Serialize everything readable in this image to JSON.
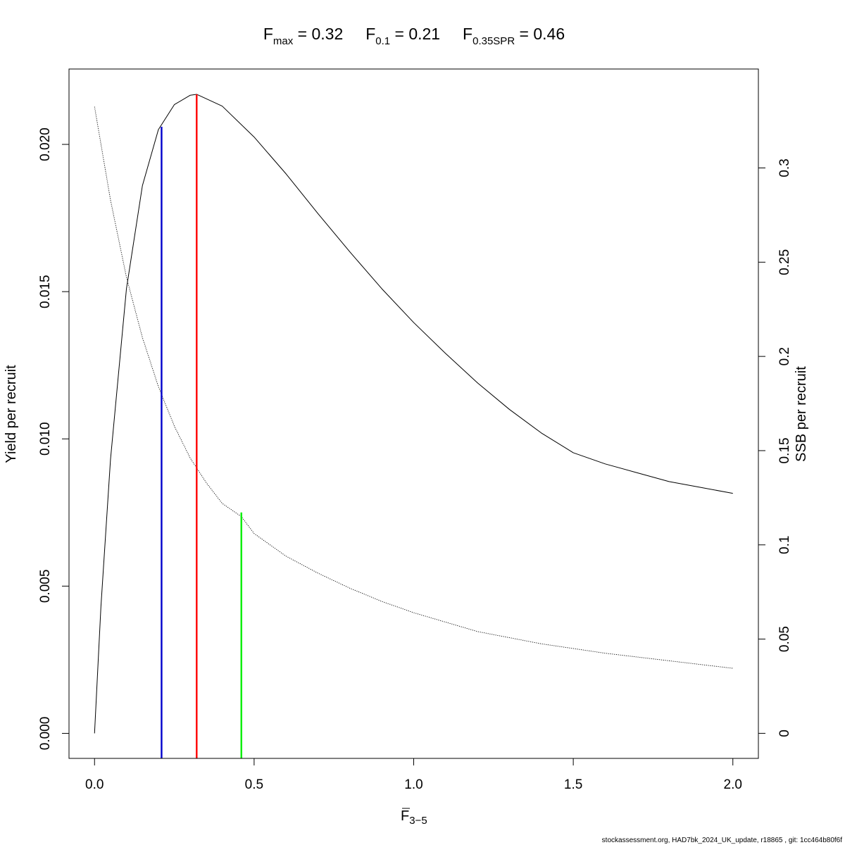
{
  "chart_data": {
    "type": "line",
    "title_parts": [
      {
        "main": "F",
        "sub": "max",
        "eq": " = ",
        "value": "0.32"
      },
      {
        "main": "F",
        "sub": "0.1",
        "eq": " = ",
        "value": "0.21"
      },
      {
        "main": "F",
        "sub": "0.35SPR",
        "eq": " = ",
        "value": "0.46"
      }
    ],
    "xlabel": {
      "main": "F",
      "sub": "3−5"
    },
    "ylabel_left": "Yield per recruit",
    "ylabel_right": "SSB per recruit",
    "xlim": [
      -0.08,
      2.08
    ],
    "ylim_left": [
      -0.00085,
      0.02256
    ],
    "ylim_right": [
      -0.0133,
      0.3525
    ],
    "x_ticks": [
      0,
      0.5,
      1,
      1.5,
      2
    ],
    "x_tick_labels": [
      "0.0",
      "0.5",
      "1.0",
      "1.5",
      "2.0"
    ],
    "y_left_ticks": [
      0,
      0.005,
      0.01,
      0.015,
      0.02
    ],
    "y_left_tick_labels": [
      "0.000",
      "0.005",
      "0.010",
      "0.015",
      "0.020"
    ],
    "y_right_ticks": [
      0,
      0.05,
      0.1,
      0.15,
      0.2,
      0.25,
      0.3
    ],
    "y_right_tick_labels": [
      "0",
      "0.05",
      "0.1",
      "0.15",
      "0.2",
      "0.25",
      "0.3"
    ],
    "series": [
      {
        "axis": "left",
        "style": "solid",
        "color": "#000000",
        "x": [
          0,
          0.02,
          0.05,
          0.1,
          0.15,
          0.2,
          0.25,
          0.3,
          0.32,
          0.4,
          0.5,
          0.6,
          0.7,
          0.8,
          0.9,
          1.0,
          1.1,
          1.2,
          1.3,
          1.4,
          1.5,
          1.6,
          1.7,
          1.8,
          1.9,
          2.0
        ],
        "y": [
          0,
          0.0043,
          0.0093,
          0.0151,
          0.0186,
          0.0205,
          0.02135,
          0.02167,
          0.0217,
          0.0213,
          0.02025,
          0.019,
          0.01765,
          0.01635,
          0.0151,
          0.01395,
          0.0129,
          0.0119,
          0.011,
          0.0102,
          0.00953,
          0.00915,
          0.00885,
          0.00855,
          0.00835,
          0.00815
        ]
      },
      {
        "axis": "right",
        "style": "dotted",
        "color": "#000000",
        "x": [
          0,
          0.05,
          0.1,
          0.15,
          0.2,
          0.25,
          0.3,
          0.35,
          0.4,
          0.46,
          0.5,
          0.6,
          0.7,
          0.8,
          0.9,
          1.0,
          1.2,
          1.4,
          1.5,
          1.6,
          1.8,
          2.0
        ],
        "y": [
          0.3325,
          0.283,
          0.242,
          0.21,
          0.184,
          0.163,
          0.146,
          0.133,
          0.122,
          0.115,
          0.106,
          0.094,
          0.085,
          0.077,
          0.07,
          0.064,
          0.054,
          0.0475,
          0.045,
          0.0425,
          0.0385,
          0.0345
        ]
      }
    ],
    "reference_lines": [
      {
        "x": 0.21,
        "y_top": 0.0206,
        "axis": "left",
        "color": "#0000CC"
      },
      {
        "x": 0.32,
        "y_top": 0.0217,
        "axis": "left",
        "color": "#FF0000"
      },
      {
        "x": 0.46,
        "y_top": 0.0075,
        "axis": "left",
        "color": "#00EE00"
      }
    ]
  },
  "footer": "stockassessment.org, HAD7bk_2024_UK_update, r18865 , git: 1cc464b80f6f"
}
